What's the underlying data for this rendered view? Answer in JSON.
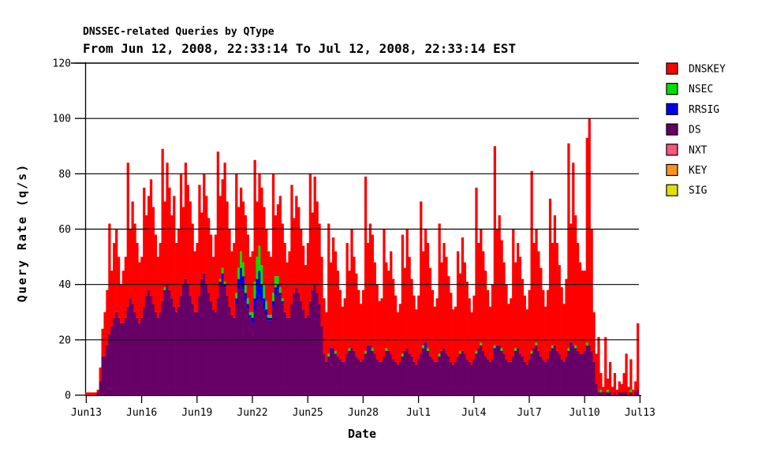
{
  "page": {
    "background": "#FFFFFF"
  },
  "chart_data": {
    "type": "bar",
    "stacked": true,
    "title": "DNSSEC-related Queries by QType",
    "subtitle": "From Jun 12, 2008, 22:33:14 To Jul 12, 2008, 22:33:14 EST",
    "xlabel": "Date",
    "ylabel": "Query Rate (q/s)",
    "ylim": [
      0,
      120
    ],
    "y_ticks": [
      0,
      20,
      40,
      60,
      80,
      100,
      120
    ],
    "x_ticks": [
      "Jun13",
      "Jun16",
      "Jun19",
      "Jun22",
      "Jun25",
      "Jun28",
      "Jul1",
      "Jul4",
      "Jul7",
      "Jul10",
      "Jul13"
    ],
    "x_tick_interval_days": 3,
    "x_range_days": 30,
    "samples_per_day": 8,
    "grid": "horizontal-on-top",
    "legend_position": "right",
    "legend": [
      {
        "label": "DNSKEY",
        "color": "#FF0000"
      },
      {
        "label": "NSEC",
        "color": "#00E000"
      },
      {
        "label": "RRSIG",
        "color": "#0000EE"
      },
      {
        "label": "DS",
        "color": "#660066"
      },
      {
        "label": "NXT",
        "color": "#F7547E"
      },
      {
        "label": "KEY",
        "color": "#FA9319"
      },
      {
        "label": "SIG",
        "color": "#E0E000"
      }
    ],
    "stack_order_bottom_to_top": [
      "DS",
      "RRSIG",
      "NSEC",
      "DNSKEY"
    ],
    "series": {
      "DS": [
        0,
        0,
        0,
        0,
        0,
        1,
        5,
        14,
        14,
        18,
        22,
        25,
        28,
        30,
        28,
        26,
        26,
        28,
        32,
        35,
        33,
        30,
        28,
        26,
        28,
        32,
        36,
        38,
        36,
        33,
        30,
        28,
        30,
        34,
        38,
        40,
        38,
        35,
        32,
        30,
        32,
        36,
        40,
        42,
        40,
        36,
        33,
        30,
        30,
        36,
        42,
        44,
        40,
        37,
        34,
        31,
        30,
        35,
        40,
        42,
        39,
        36,
        32,
        29,
        28,
        33,
        38,
        40,
        38,
        34,
        31,
        28,
        26,
        30,
        34,
        36,
        34,
        31,
        29,
        27,
        27,
        32,
        36,
        38,
        36,
        33,
        30,
        28,
        28,
        33,
        37,
        39,
        37,
        34,
        31,
        28,
        29,
        34,
        38,
        40,
        37,
        33,
        25,
        15,
        12,
        14,
        16,
        17,
        15,
        14,
        13,
        12,
        12,
        15,
        16,
        17,
        16,
        14,
        13,
        12,
        13,
        15,
        17,
        18,
        16,
        15,
        13,
        12,
        12,
        14,
        16,
        16,
        15,
        13,
        12,
        11,
        12,
        14,
        16,
        17,
        15,
        14,
        12,
        11,
        13,
        15,
        17,
        18,
        16,
        14,
        13,
        12,
        12,
        14,
        16,
        17,
        15,
        14,
        12,
        11,
        12,
        14,
        15,
        16,
        15,
        13,
        12,
        11,
        13,
        15,
        17,
        18,
        16,
        14,
        13,
        12,
        13,
        16,
        18,
        18,
        16,
        15,
        13,
        12,
        12,
        14,
        16,
        17,
        15,
        14,
        12,
        11,
        13,
        15,
        17,
        18,
        16,
        14,
        13,
        12,
        13,
        16,
        17,
        18,
        16,
        15,
        13,
        12,
        14,
        16,
        18,
        18,
        17,
        16,
        15,
        15,
        16,
        18,
        18,
        16,
        12,
        4,
        1,
        1,
        1,
        1,
        1,
        1,
        0,
        1,
        0,
        1,
        1,
        1,
        1,
        0,
        1,
        0,
        1,
        2
      ],
      "RRSIG": [
        0,
        0,
        0,
        0,
        0,
        0,
        0,
        0,
        0,
        0,
        0,
        0,
        0,
        0,
        0,
        0,
        0,
        0,
        0,
        0,
        0,
        0,
        0,
        0,
        0,
        0,
        0,
        0,
        0,
        0,
        0,
        0,
        0,
        0,
        0,
        0,
        0,
        0,
        0,
        0,
        0,
        0,
        0,
        0,
        0,
        0,
        0,
        0,
        0,
        0,
        0,
        0,
        0,
        0,
        0,
        0,
        0,
        0,
        1,
        2,
        1,
        0,
        0,
        0,
        0,
        2,
        4,
        6,
        5,
        3,
        2,
        1,
        2,
        5,
        8,
        9,
        6,
        4,
        2,
        1,
        1,
        2,
        3,
        2,
        1,
        1,
        0,
        0,
        0,
        0,
        0,
        0,
        0,
        0,
        0,
        0,
        0,
        0,
        0,
        0,
        0,
        0,
        0,
        0,
        0,
        0,
        1,
        0,
        0,
        0,
        0,
        0,
        0,
        0,
        0,
        0,
        0,
        0,
        0,
        0,
        0,
        0,
        1,
        0,
        0,
        0,
        0,
        0,
        0,
        0,
        0,
        0,
        0,
        0,
        0,
        0,
        0,
        0,
        0,
        0,
        0,
        0,
        0,
        0,
        0,
        0,
        0,
        1,
        0,
        0,
        0,
        0,
        0,
        0,
        0,
        0,
        0,
        0,
        0,
        0,
        0,
        0,
        0,
        0,
        0,
        0,
        0,
        0,
        0,
        0,
        0,
        0,
        0,
        0,
        0,
        0,
        0,
        1,
        0,
        0,
        0,
        0,
        0,
        0,
        0,
        0,
        0,
        0,
        0,
        0,
        0,
        0,
        0,
        0,
        0,
        0,
        0,
        0,
        0,
        0,
        0,
        0,
        0,
        0,
        0,
        0,
        0,
        0,
        0,
        0,
        1,
        0,
        0,
        0,
        0,
        0,
        0,
        0,
        0,
        0,
        0,
        0,
        0,
        0,
        0,
        0,
        0,
        0,
        0,
        0,
        0,
        0,
        0,
        0,
        0,
        0,
        0,
        0,
        0,
        0
      ],
      "NSEC": [
        0,
        0,
        0,
        0,
        0,
        0,
        0,
        0,
        0,
        0,
        0,
        0,
        0,
        0,
        0,
        0,
        0,
        0,
        0,
        0,
        0,
        0,
        0,
        0,
        0,
        0,
        0,
        0,
        0,
        0,
        0,
        0,
        0,
        0,
        1,
        0,
        0,
        0,
        0,
        0,
        0,
        0,
        0,
        0,
        0,
        0,
        0,
        0,
        0,
        0,
        0,
        0,
        0,
        0,
        0,
        0,
        0,
        0,
        1,
        2,
        1,
        0,
        0,
        0,
        0,
        2,
        4,
        6,
        5,
        3,
        2,
        1,
        2,
        6,
        8,
        9,
        7,
        5,
        3,
        1,
        1,
        3,
        4,
        3,
        2,
        1,
        0,
        0,
        0,
        0,
        0,
        0,
        0,
        0,
        0,
        0,
        0,
        0,
        0,
        0,
        0,
        0,
        0,
        0,
        0,
        1,
        0,
        0,
        1,
        0,
        0,
        0,
        0,
        0,
        1,
        0,
        0,
        0,
        0,
        0,
        0,
        1,
        0,
        0,
        1,
        0,
        0,
        0,
        0,
        0,
        1,
        0,
        0,
        0,
        0,
        0,
        0,
        1,
        0,
        0,
        0,
        0,
        0,
        0,
        0,
        0,
        1,
        0,
        1,
        0,
        0,
        0,
        0,
        1,
        0,
        0,
        0,
        0,
        0,
        0,
        0,
        0,
        1,
        0,
        0,
        0,
        0,
        0,
        0,
        1,
        0,
        1,
        0,
        0,
        0,
        0,
        0,
        1,
        0,
        0,
        1,
        0,
        0,
        0,
        0,
        0,
        1,
        0,
        0,
        0,
        0,
        0,
        0,
        1,
        0,
        1,
        0,
        0,
        0,
        0,
        0,
        0,
        1,
        0,
        0,
        0,
        0,
        0,
        0,
        1,
        0,
        0,
        1,
        0,
        0,
        0,
        0,
        1,
        0,
        0,
        0,
        0,
        0,
        1,
        0,
        0,
        1,
        0,
        0,
        0,
        0,
        0,
        0,
        0,
        0,
        0,
        1,
        0,
        0,
        0
      ],
      "DNSKEY": [
        1,
        1,
        1,
        1,
        1,
        1,
        5,
        10,
        16,
        20,
        40,
        20,
        27,
        30,
        22,
        14,
        19,
        22,
        52,
        25,
        37,
        32,
        27,
        22,
        22,
        43,
        29,
        34,
        42,
        35,
        28,
        22,
        25,
        55,
        31,
        44,
        37,
        30,
        40,
        25,
        28,
        44,
        28,
        42,
        36,
        34,
        29,
        22,
        25,
        40,
        24,
        36,
        32,
        27,
        24,
        19,
        28,
        53,
        30,
        32,
        43,
        34,
        28,
        23,
        27,
        43,
        22,
        23,
        22,
        25,
        23,
        20,
        22,
        44,
        20,
        26,
        28,
        28,
        26,
        23,
        21,
        43,
        22,
        26,
        33,
        27,
        25,
        20,
        24,
        43,
        27,
        33,
        31,
        26,
        23,
        19,
        26,
        46,
        28,
        39,
        33,
        29,
        25,
        20,
        18,
        47,
        31,
        40,
        36,
        31,
        25,
        20,
        23,
        40,
        28,
        43,
        34,
        30,
        25,
        21,
        25,
        63,
        37,
        44,
        41,
        33,
        27,
        22,
        23,
        46,
        31,
        29,
        37,
        29,
        24,
        19,
        21,
        43,
        30,
        43,
        35,
        28,
        24,
        20,
        23,
        55,
        34,
        41,
        38,
        32,
        25,
        20,
        23,
        47,
        32,
        38,
        35,
        29,
        25,
        20,
        20,
        38,
        28,
        41,
        33,
        28,
        23,
        19,
        23,
        59,
        38,
        41,
        36,
        31,
        25,
        20,
        27,
        72,
        42,
        47,
        39,
        33,
        27,
        21,
        23,
        46,
        31,
        38,
        35,
        28,
        24,
        20,
        25,
        65,
        38,
        41,
        36,
        32,
        25,
        20,
        25,
        55,
        37,
        47,
        39,
        32,
        26,
        21,
        28,
        74,
        43,
        66,
        47,
        39,
        33,
        30,
        29,
        74,
        82,
        44,
        18,
        11,
        20,
        6,
        2,
        20,
        4,
        11,
        3,
        7,
        2,
        4,
        3,
        7,
        14,
        3,
        11,
        2,
        4,
        24
      ]
    }
  }
}
